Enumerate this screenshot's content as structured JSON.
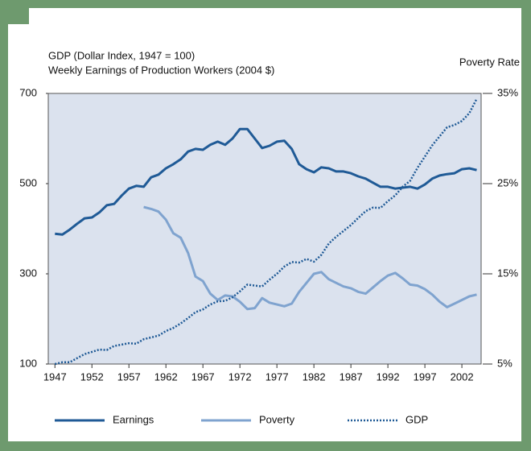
{
  "chart_data": {
    "type": "line",
    "left_axis_titles": [
      "GDP (Dollar Index, 1947 = 100)",
      "Weekly Earnings of Production Workers (2004 $)"
    ],
    "right_axis_title": "Poverty Rate",
    "x": [
      1947,
      1948,
      1949,
      1950,
      1951,
      1952,
      1953,
      1954,
      1955,
      1956,
      1957,
      1958,
      1959,
      1960,
      1961,
      1962,
      1963,
      1964,
      1965,
      1966,
      1967,
      1968,
      1969,
      1970,
      1971,
      1972,
      1973,
      1974,
      1975,
      1976,
      1977,
      1978,
      1979,
      1980,
      1981,
      1982,
      1983,
      1984,
      1985,
      1986,
      1987,
      1988,
      1989,
      1990,
      1991,
      1992,
      1993,
      1994,
      1995,
      1996,
      1997,
      1998,
      1999,
      2000,
      2001,
      2002,
      2003,
      2004
    ],
    "series": [
      {
        "name": "Earnings",
        "color": "#1f5a96",
        "style": "solid",
        "width": 3,
        "axis": "y",
        "values": [
          389,
          387,
          398,
          411,
          423,
          425,
          436,
          452,
          455,
          473,
          489,
          495,
          493,
          514,
          520,
          534,
          543,
          554,
          571,
          577,
          575,
          586,
          593,
          586,
          600,
          621,
          621,
          600,
          579,
          584,
          593,
          595,
          577,
          543,
          532,
          525,
          536,
          534,
          527,
          527,
          523,
          516,
          511,
          502,
          493,
          493,
          489,
          491,
          493,
          489,
          498,
          511,
          518,
          521,
          523,
          532,
          534,
          530
        ]
      },
      {
        "name": "Poverty",
        "color": "#7fa3cf",
        "style": "solid",
        "width": 3,
        "axis": "y2",
        "values": [
          null,
          null,
          null,
          null,
          null,
          null,
          null,
          null,
          null,
          null,
          null,
          null,
          22.4,
          22.2,
          21.9,
          21.0,
          19.5,
          19.0,
          17.3,
          14.7,
          14.2,
          12.8,
          12.1,
          12.6,
          12.5,
          11.9,
          11.1,
          11.2,
          12.3,
          11.8,
          11.6,
          11.4,
          11.7,
          13.0,
          14.0,
          15.0,
          15.2,
          14.4,
          14.0,
          13.6,
          13.4,
          13.0,
          12.8,
          13.5,
          14.2,
          14.8,
          15.1,
          14.5,
          13.8,
          13.7,
          13.3,
          12.7,
          11.9,
          11.3,
          11.7,
          12.1,
          12.5,
          12.7
        ]
      },
      {
        "name": "GDP",
        "color": "#1f5a96",
        "style": "dotted",
        "width": 2.5,
        "axis": "y",
        "values": [
          100,
          104,
          104,
          113,
          122,
          127,
          132,
          131,
          140,
          143,
          146,
          145,
          155,
          159,
          163,
          173,
          180,
          190,
          202,
          215,
          221,
          232,
          239,
          240,
          248,
          261,
          276,
          274,
          272,
          287,
          300,
          316,
          326,
          325,
          333,
          327,
          342,
          367,
          382,
          395,
          408,
          424,
          439,
          447,
          446,
          461,
          474,
          493,
          506,
          535,
          560,
          585,
          605,
          625,
          630,
          639,
          656,
          688
        ]
      }
    ],
    "xlim": [
      1946.1,
      2004.6
    ],
    "xticks": [
      1947,
      1952,
      1957,
      1962,
      1967,
      1972,
      1977,
      1982,
      1987,
      1992,
      1997,
      2002
    ],
    "ylim": [
      100,
      700
    ],
    "yticks": [
      100,
      300,
      500,
      700
    ],
    "y2lim": [
      5,
      35
    ],
    "y2ticks": [
      {
        "value": 5,
        "label": "5%"
      },
      {
        "value": 15,
        "label": "15%"
      },
      {
        "value": 25,
        "label": "25%"
      },
      {
        "value": 35,
        "label": "35%"
      }
    ],
    "plot_color": "#dbe2ee"
  }
}
